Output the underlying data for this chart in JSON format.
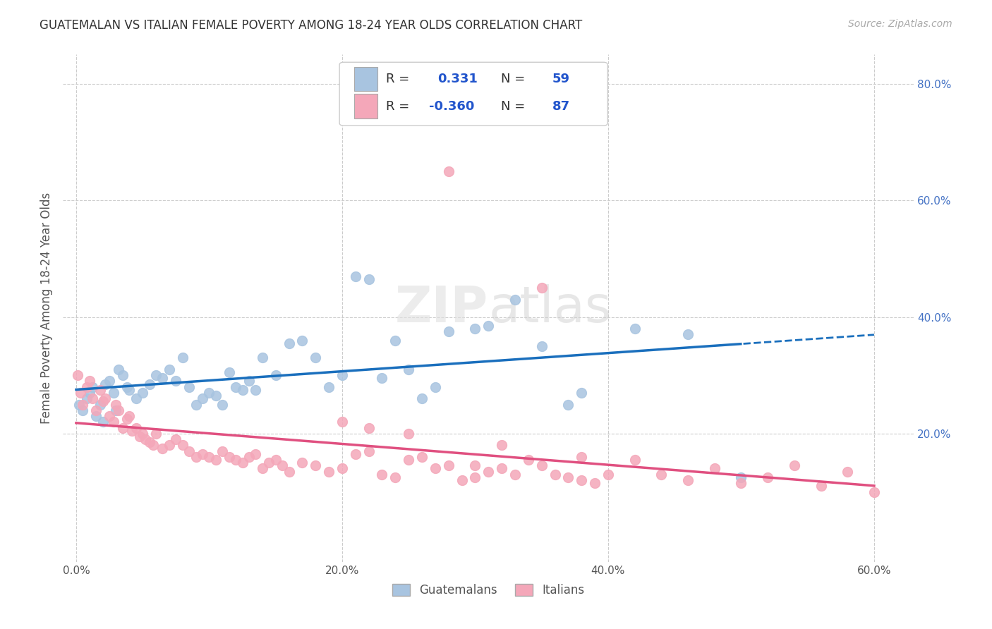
{
  "title": "GUATEMALAN VS ITALIAN FEMALE POVERTY AMONG 18-24 YEAR OLDS CORRELATION CHART",
  "source": "Source: ZipAtlas.com",
  "ylabel_label": "Female Poverty Among 18-24 Year Olds",
  "legend_guatemalans": "Guatemalans",
  "legend_italians": "Italians",
  "r_guatemalan": "0.331",
  "n_guatemalan": "59",
  "r_italian": "-0.360",
  "n_italian": "87",
  "guatemalan_color": "#a8c4e0",
  "guatemalan_line_color": "#1a6fbd",
  "italian_color": "#f4a7b9",
  "italian_line_color": "#e05080",
  "scatter_alpha": 0.85,
  "guatemalan_x": [
    0.2,
    0.5,
    0.8,
    1.0,
    1.2,
    1.5,
    1.8,
    2.0,
    2.2,
    2.5,
    2.8,
    3.0,
    3.2,
    3.5,
    3.8,
    4.0,
    4.5,
    5.0,
    5.5,
    6.0,
    6.5,
    7.0,
    7.5,
    8.0,
    8.5,
    9.0,
    9.5,
    10.0,
    10.5,
    11.0,
    11.5,
    12.0,
    12.5,
    13.0,
    13.5,
    14.0,
    15.0,
    16.0,
    17.0,
    18.0,
    19.0,
    20.0,
    21.0,
    22.0,
    23.0,
    24.0,
    25.0,
    26.0,
    27.0,
    28.0,
    30.0,
    31.0,
    33.0,
    35.0,
    37.0,
    38.0,
    42.0,
    46.0,
    50.0
  ],
  "guatemalan_y": [
    25.0,
    24.0,
    26.0,
    27.0,
    28.0,
    23.0,
    25.0,
    22.0,
    28.5,
    29.0,
    27.0,
    24.0,
    31.0,
    30.0,
    28.0,
    27.5,
    26.0,
    27.0,
    28.5,
    30.0,
    29.5,
    31.0,
    29.0,
    33.0,
    28.0,
    25.0,
    26.0,
    27.0,
    26.5,
    25.0,
    30.5,
    28.0,
    27.5,
    29.0,
    27.5,
    33.0,
    30.0,
    35.5,
    36.0,
    33.0,
    28.0,
    30.0,
    47.0,
    46.5,
    29.5,
    36.0,
    31.0,
    26.0,
    28.0,
    37.5,
    38.0,
    38.5,
    43.0,
    35.0,
    25.0,
    27.0,
    38.0,
    37.0,
    12.5
  ],
  "italian_x": [
    0.1,
    0.3,
    0.5,
    0.8,
    1.0,
    1.2,
    1.5,
    1.8,
    2.0,
    2.2,
    2.5,
    2.8,
    3.0,
    3.2,
    3.5,
    3.8,
    4.0,
    4.2,
    4.5,
    4.8,
    5.0,
    5.2,
    5.5,
    5.8,
    6.0,
    6.5,
    7.0,
    7.5,
    8.0,
    8.5,
    9.0,
    9.5,
    10.0,
    10.5,
    11.0,
    11.5,
    12.0,
    12.5,
    13.0,
    13.5,
    14.0,
    14.5,
    15.0,
    15.5,
    16.0,
    17.0,
    18.0,
    19.0,
    20.0,
    21.0,
    22.0,
    23.0,
    24.0,
    25.0,
    26.0,
    27.0,
    28.0,
    29.0,
    30.0,
    31.0,
    32.0,
    33.0,
    34.0,
    35.0,
    36.0,
    37.0,
    38.0,
    39.0,
    40.0,
    42.0,
    44.0,
    46.0,
    48.0,
    50.0,
    52.0,
    54.0,
    56.0,
    58.0,
    60.0,
    28.0,
    35.0,
    20.0,
    22.0,
    25.0,
    30.0,
    32.0,
    38.0
  ],
  "italian_y": [
    30.0,
    27.0,
    25.0,
    28.0,
    29.0,
    26.0,
    24.0,
    27.5,
    25.5,
    26.0,
    23.0,
    22.0,
    25.0,
    24.0,
    21.0,
    22.5,
    23.0,
    20.5,
    21.0,
    19.5,
    20.0,
    19.0,
    18.5,
    18.0,
    20.0,
    17.5,
    18.0,
    19.0,
    18.0,
    17.0,
    16.0,
    16.5,
    16.0,
    15.5,
    17.0,
    16.0,
    15.5,
    15.0,
    16.0,
    16.5,
    14.0,
    15.0,
    15.5,
    14.5,
    13.5,
    15.0,
    14.5,
    13.5,
    14.0,
    16.5,
    17.0,
    13.0,
    12.5,
    15.5,
    16.0,
    14.0,
    14.5,
    12.0,
    12.5,
    13.5,
    14.0,
    13.0,
    15.5,
    14.5,
    13.0,
    12.5,
    12.0,
    11.5,
    13.0,
    15.5,
    13.0,
    12.0,
    14.0,
    11.5,
    12.5,
    14.5,
    11.0,
    13.5,
    10.0,
    65.0,
    45.0,
    22.0,
    21.0,
    20.0,
    14.5,
    18.0,
    16.0
  ]
}
